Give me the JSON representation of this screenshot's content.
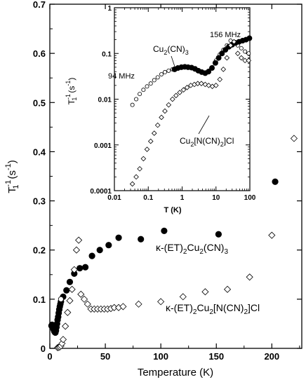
{
  "chart_data": [
    {
      "type": "scatter",
      "xlabel": "Temperature (K)",
      "ylabel_main": "T",
      "ylabel_sup": "-1",
      "ylabel_sub": "1",
      "ylabel_unit": "(s",
      "ylabel_unit_sup": "-1",
      "ylabel_end": ")",
      "xlim": [
        0,
        227
      ],
      "ylim": [
        0,
        0.7
      ],
      "x_ticks": [
        "0",
        "50",
        "100",
        "150",
        "200"
      ],
      "y_ticks": [
        "0",
        "0.1",
        "0.2",
        "0.3",
        "0.4",
        "0.5",
        "0.6",
        "0.7"
      ],
      "x_tick_values": [
        0,
        50,
        100,
        150,
        200
      ],
      "y_tick_values": [
        0,
        0.1,
        0.2,
        0.3,
        0.4,
        0.5,
        0.6,
        0.7
      ],
      "annotations": [
        {
          "main": "κ-(ET)",
          "sub1": "2",
          "mid": "Cu",
          "sub2": "2",
          "tail": "(CN)",
          "sub3": "3",
          "tail2": ""
        },
        {
          "main": "κ-(ET)",
          "sub1": "2",
          "mid": "Cu",
          "sub2": "2",
          "tail": "[N(CN)",
          "sub3": "2",
          "tail2": "]Cl"
        }
      ],
      "series": [
        {
          "marker": "filled-circle",
          "x": [
            1.5,
            2,
            2.5,
            3,
            3.5,
            4,
            4.5,
            5,
            5.5,
            6,
            6.5,
            7,
            7.5,
            8,
            8.5,
            9,
            9.5,
            10,
            12,
            15,
            18,
            22,
            27,
            32,
            38,
            45,
            53,
            62,
            82,
            103,
            152,
            203
          ],
          "y": [
            0.046,
            0.048,
            0.044,
            0.041,
            0.038,
            0.035,
            0.033,
            0.032,
            0.036,
            0.043,
            0.05,
            0.058,
            0.064,
            0.072,
            0.079,
            0.085,
            0.09,
            0.095,
            0.105,
            0.118,
            0.135,
            0.152,
            0.163,
            0.165,
            0.188,
            0.2,
            0.21,
            0.225,
            0.222,
            0.239,
            0.232,
            0.339
          ]
        },
        {
          "marker": "open-circle",
          "x": [
            10
          ],
          "y": [
            0.1
          ]
        },
        {
          "marker": "open-diamond",
          "x": [
            7,
            8,
            9,
            10,
            11,
            12,
            14,
            16,
            18,
            20,
            22,
            24,
            26,
            28,
            31,
            34,
            37,
            40,
            43,
            46,
            49,
            52,
            55,
            58,
            62,
            66,
            80,
            100,
            120,
            140,
            160,
            180,
            200,
            220
          ],
          "y": [
            0.0015,
            0.002,
            0.003,
            0.005,
            0.01,
            0.018,
            0.045,
            0.073,
            0.097,
            0.12,
            0.16,
            0.2,
            0.22,
            0.11,
            0.1,
            0.09,
            0.08,
            0.08,
            0.08,
            0.08,
            0.08,
            0.08,
            0.081,
            0.083,
            0.083,
            0.085,
            0.09,
            0.095,
            0.105,
            0.115,
            0.12,
            0.145,
            0.23,
            0.427
          ]
        }
      ]
    },
    {
      "type": "scatter",
      "xscale": "log",
      "yscale": "log",
      "xlabel": "T (K)",
      "ylabel_main": "T",
      "ylabel_sup": "-1",
      "ylabel_sub": "1",
      "ylabel_unit": "(s",
      "ylabel_unit_sup": "-1",
      "ylabel_end": ")",
      "xlim": [
        0.01,
        100
      ],
      "ylim": [
        0.0001,
        1
      ],
      "x_ticks": [
        "0.01",
        "0.1",
        "1",
        "10",
        "100"
      ],
      "y_ticks": [
        "0.0001",
        "0.001",
        "0.01",
        "0.1",
        "1"
      ],
      "x_tick_values": [
        0.01,
        0.1,
        1,
        10,
        100
      ],
      "y_tick_values": [
        0.0001,
        0.001,
        0.01,
        0.1,
        1
      ],
      "annotations": [
        {
          "text": "94 MHz"
        },
        {
          "text": "156 MHz"
        },
        {
          "main": "Cu",
          "sub1": "2",
          "tail": "(CN)",
          "sub2": "3",
          "tail2": ""
        },
        {
          "main": "Cu",
          "sub1": "2",
          "tail": "[N(CN)",
          "sub2": "2",
          "tail2": "]Cl"
        }
      ],
      "series": [
        {
          "marker": "open-circle",
          "x": [
            0.034,
            0.044,
            0.056,
            0.072,
            0.092,
            0.118,
            0.15,
            0.19,
            0.245,
            0.31,
            0.4,
            0.52,
            0.66,
            0.85,
            1.1,
            1.4,
            1.8,
            2.3,
            2.9,
            3.7,
            4.8,
            6.1,
            7.8,
            10,
            13,
            16.5,
            21,
            27,
            34,
            44,
            56,
            72,
            92
          ],
          "y": [
            0.0075,
            0.01,
            0.013,
            0.016,
            0.019,
            0.022,
            0.026,
            0.03,
            0.035,
            0.039,
            0.042,
            0.045,
            0.047,
            0.049,
            0.05,
            0.05,
            0.049,
            0.046,
            0.043,
            0.04,
            0.038,
            0.042,
            0.05,
            0.07,
            0.095,
            0.12,
            0.15,
            0.19,
            0.18,
            0.15,
            0.13,
            0.11,
            0.1
          ]
        },
        {
          "marker": "filled-circle",
          "x": [
            0.6,
            0.75,
            0.95,
            1.2,
            1.5,
            1.9,
            2.4,
            3,
            3.8,
            4.8,
            6,
            7.6,
            9.6,
            12,
            15,
            19,
            24,
            30,
            38,
            48,
            61,
            77,
            97
          ],
          "y": [
            0.045,
            0.048,
            0.05,
            0.051,
            0.05,
            0.049,
            0.046,
            0.042,
            0.039,
            0.037,
            0.04,
            0.048,
            0.062,
            0.08,
            0.1,
            0.12,
            0.14,
            0.155,
            0.17,
            0.18,
            0.19,
            0.2,
            0.215
          ]
        },
        {
          "marker": "open-diamond",
          "x": [
            0.034,
            0.044,
            0.056,
            0.072,
            0.092,
            0.118,
            0.15,
            0.19,
            0.245,
            0.31,
            0.4,
            0.52,
            0.66,
            0.85,
            1.1,
            1.4,
            1.8,
            2.3,
            2.9,
            3.7,
            4.8,
            6.1,
            7.8,
            10,
            13,
            16.5,
            21,
            27,
            34,
            44,
            56,
            72,
            92
          ],
          "y": [
            0.00014,
            0.0002,
            0.0003,
            0.0005,
            0.0008,
            0.0012,
            0.0018,
            0.0027,
            0.004,
            0.0055,
            0.0075,
            0.01,
            0.012,
            0.014,
            0.016,
            0.018,
            0.02,
            0.021,
            0.022,
            0.022,
            0.021,
            0.02,
            0.019,
            0.02,
            0.027,
            0.045,
            0.08,
            0.15,
            0.18,
            0.1,
            0.08,
            0.07,
            0.07
          ]
        }
      ]
    }
  ]
}
